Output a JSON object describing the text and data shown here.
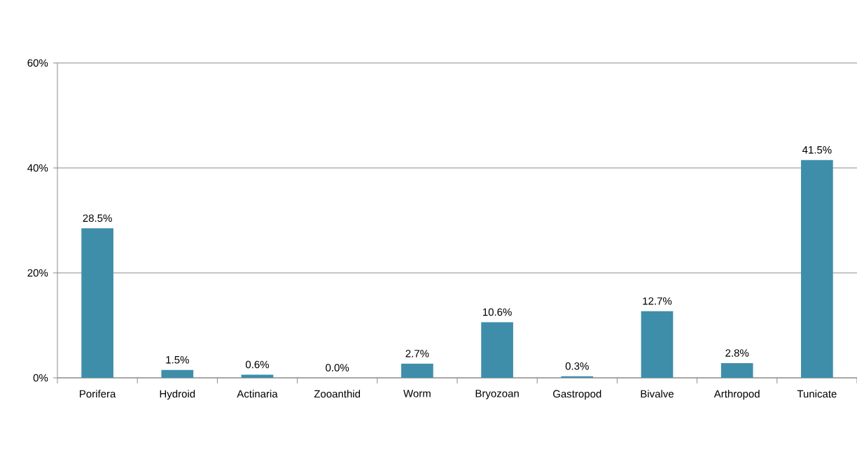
{
  "chart_data": {
    "type": "bar",
    "categories": [
      "Porifera",
      "Hydroid",
      "Actinaria",
      "Zooanthid",
      "Worm",
      "Bryozoan",
      "Gastropod",
      "Bivalve",
      "Arthropod",
      "Tunicate"
    ],
    "values": [
      28.5,
      1.5,
      0.6,
      0.0,
      2.7,
      10.6,
      0.3,
      12.7,
      2.8,
      41.5
    ],
    "value_labels": [
      "28.5%",
      "1.5%",
      "0.6%",
      "0.0%",
      "2.7%",
      "10.6%",
      "0.3%",
      "12.7%",
      "2.8%",
      "41.5%"
    ],
    "color": "#3e8eaa",
    "ylim": [
      0,
      60
    ],
    "yticks": [
      {
        "value": 0,
        "label": "0%"
      },
      {
        "value": 20,
        "label": "20%"
      },
      {
        "value": 40,
        "label": "40%"
      },
      {
        "value": 60,
        "label": "60%"
      }
    ],
    "grid": "y"
  }
}
